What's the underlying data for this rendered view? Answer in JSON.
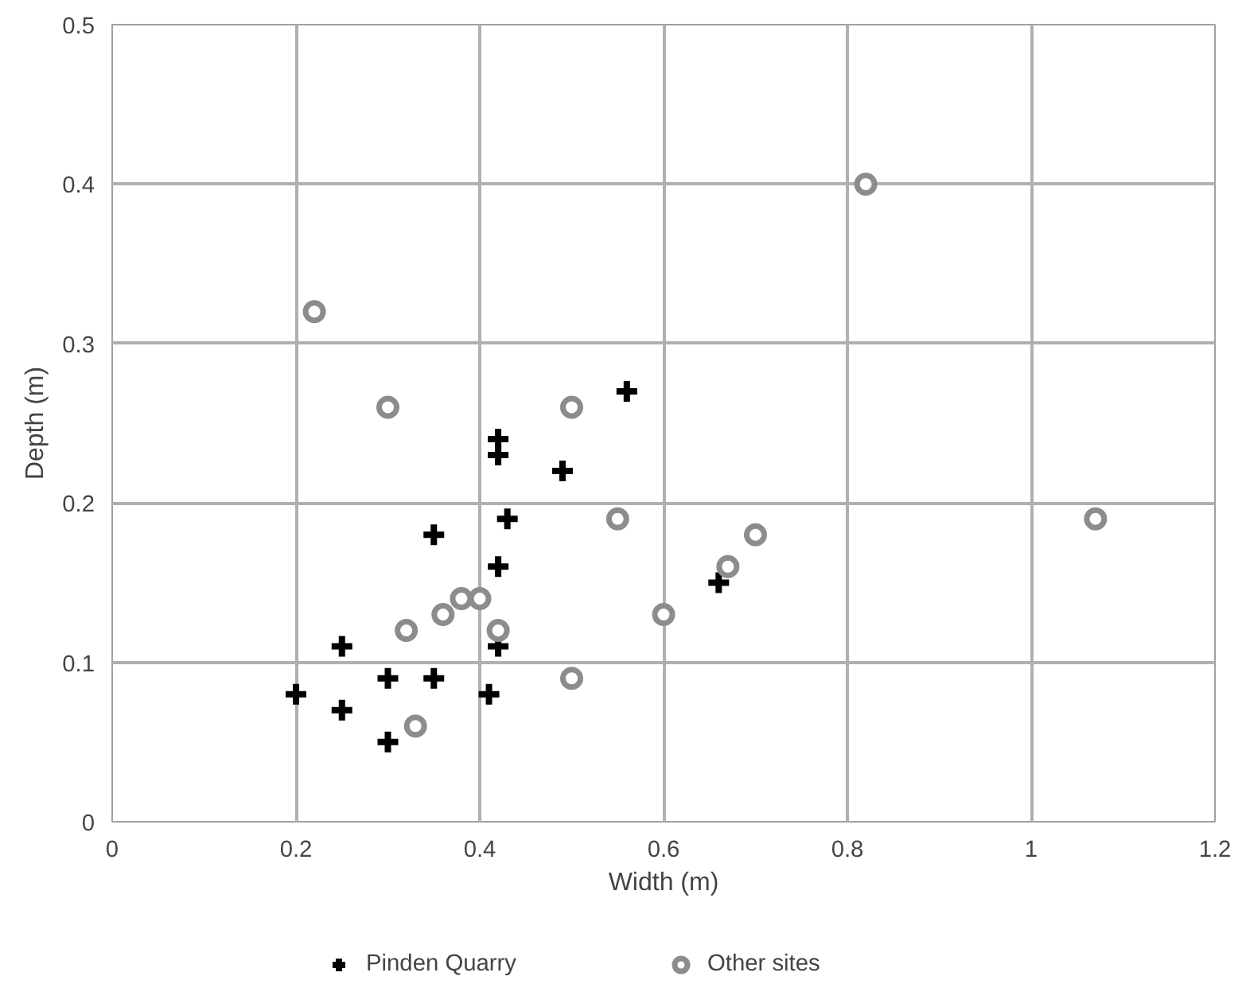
{
  "chart_data": {
    "type": "scatter",
    "xlabel": "Width (m)",
    "ylabel": "Depth (m)",
    "xlim": [
      0,
      1.2
    ],
    "xticks": [
      0,
      0.2,
      0.4,
      0.6,
      0.8,
      1,
      1.2
    ],
    "ylim": [
      0,
      0.5
    ],
    "yticks": [
      0,
      0.1,
      0.2,
      0.3,
      0.4,
      0.5
    ],
    "grid": true,
    "legend": "bottom",
    "series": [
      {
        "name": "Pinden Quarry",
        "color": "#000000",
        "marker": "cross",
        "x": [
          0.2,
          0.25,
          0.25,
          0.3,
          0.3,
          0.35,
          0.35,
          0.41,
          0.42,
          0.42,
          0.42,
          0.42,
          0.43,
          0.49,
          0.56,
          0.66
        ],
        "values": [
          0.08,
          0.11,
          0.07,
          0.09,
          0.05,
          0.09,
          0.18,
          0.08,
          0.11,
          0.16,
          0.24,
          0.23,
          0.19,
          0.22,
          0.27,
          0.15
        ]
      },
      {
        "name": "Other sites",
        "color": "#8c8c8c",
        "marker": "circle",
        "x": [
          0.22,
          0.3,
          0.32,
          0.33,
          0.36,
          0.38,
          0.4,
          0.42,
          0.5,
          0.5,
          0.55,
          0.6,
          0.67,
          0.7,
          0.82,
          1.07
        ],
        "values": [
          0.32,
          0.26,
          0.12,
          0.06,
          0.13,
          0.14,
          0.14,
          0.12,
          0.26,
          0.09,
          0.19,
          0.13,
          0.16,
          0.18,
          0.4,
          0.19
        ]
      }
    ]
  }
}
